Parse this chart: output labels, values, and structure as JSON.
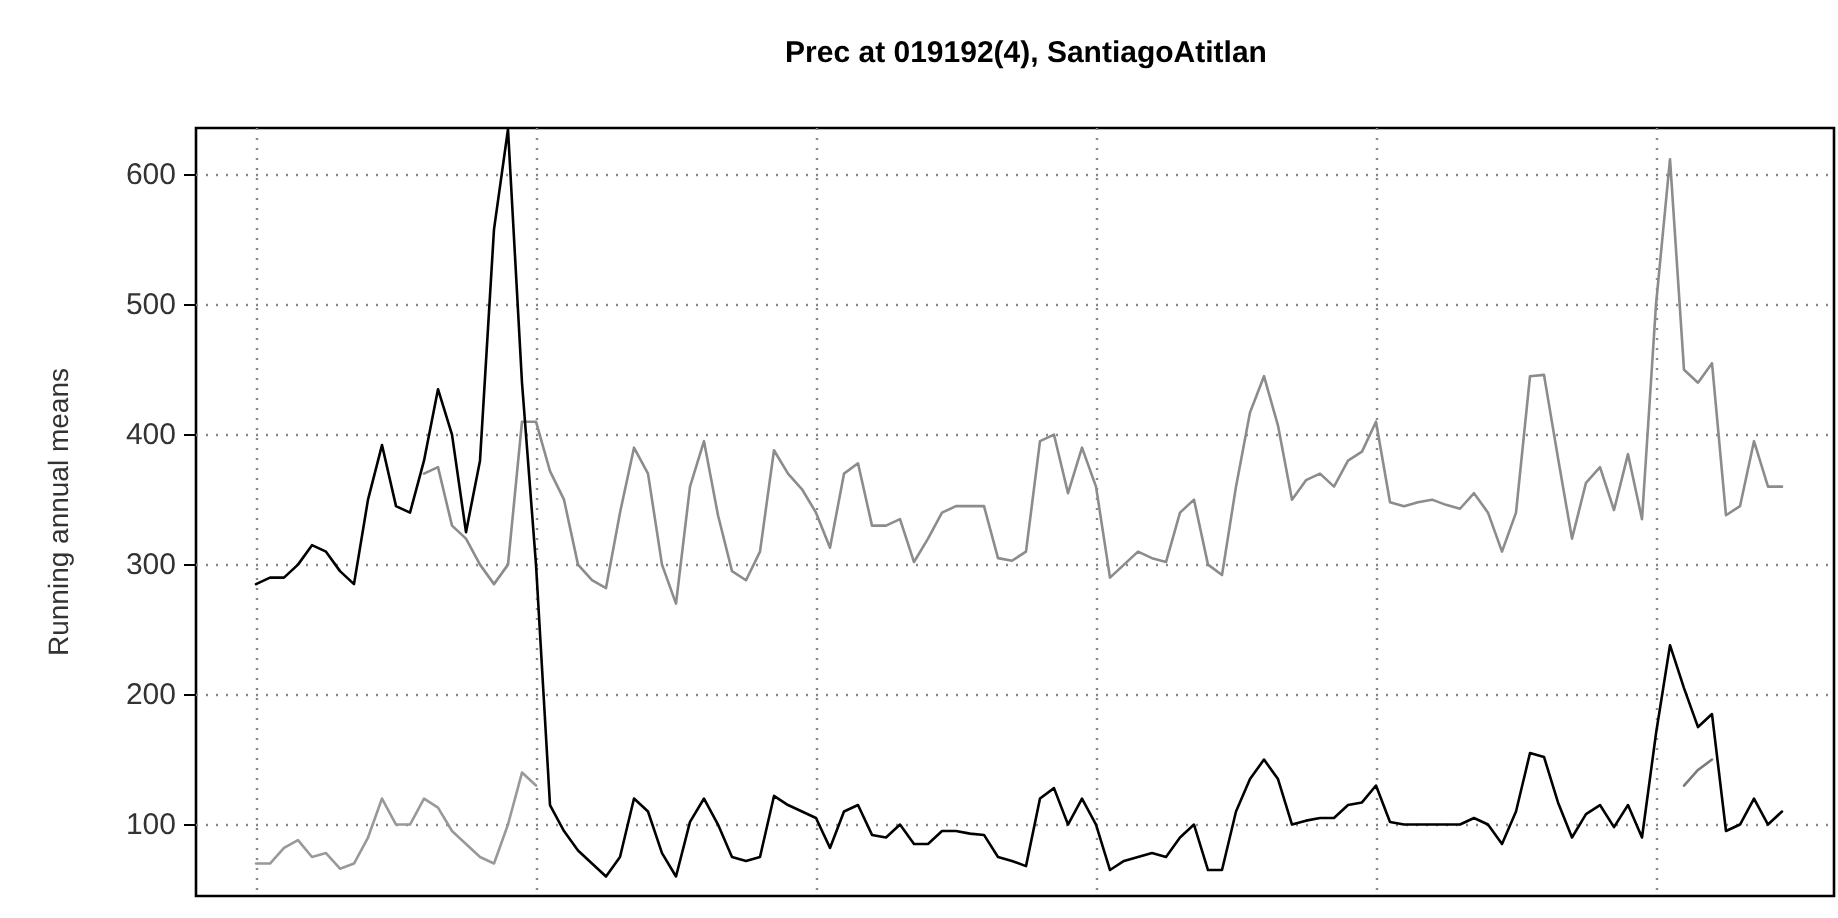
{
  "chart_data": {
    "type": "line",
    "title": "Prec at 019192(4), SantiagoAtitlan",
    "ylabel": "Running annual means",
    "categories": [
      null,
      null,
      null,
      null,
      null,
      null,
      null,
      null,
      null,
      null,
      null,
      null,
      null,
      null,
      null,
      null,
      null,
      null,
      null,
      null,
      null,
      null,
      null,
      null,
      null,
      null,
      null,
      null,
      null,
      null,
      null,
      null,
      null,
      null,
      null,
      null,
      null,
      null,
      null,
      null,
      null,
      null,
      null,
      null,
      null,
      null,
      null,
      null,
      null,
      null,
      null,
      null,
      null,
      null,
      null,
      null,
      null,
      null,
      null,
      null,
      null,
      null,
      null,
      null,
      null,
      null,
      null,
      null,
      null,
      null,
      null,
      null,
      null,
      null,
      null,
      null,
      null,
      null,
      null,
      null,
      null,
      null,
      null,
      null,
      null,
      null,
      null,
      null,
      null,
      null,
      null,
      null,
      null,
      null,
      null,
      null,
      null,
      null,
      null,
      null,
      null,
      null,
      null,
      null,
      null,
      null,
      null,
      null,
      null,
      null
    ],
    "ylim": [
      45,
      636
    ],
    "yticks": [
      100,
      200,
      300,
      400,
      500,
      600
    ],
    "grid": true,
    "tick_labels": "y",
    "line_style": "solid",
    "series": [
      {
        "color": "#999999",
        "values": [
          70,
          70,
          82,
          88,
          75,
          78,
          66,
          70,
          90,
          120,
          100,
          100,
          120,
          113,
          95,
          85,
          75,
          70,
          100,
          140,
          130,
          null,
          null,
          null,
          null,
          null,
          null,
          null,
          null,
          null,
          null,
          null,
          null,
          null,
          null,
          null,
          null,
          null,
          null,
          null,
          null,
          null,
          null,
          null,
          null,
          null,
          null,
          null,
          null,
          null,
          null,
          null,
          null,
          null,
          null,
          null,
          null,
          null,
          null,
          null,
          null,
          null,
          null,
          null,
          null,
          null,
          null,
          null,
          null,
          null,
          null,
          null,
          null,
          null,
          null,
          null,
          null,
          null,
          null,
          null,
          null,
          null,
          null,
          null,
          null,
          null,
          null,
          null,
          null,
          null,
          null,
          null,
          null,
          null,
          null,
          null,
          null,
          null,
          null,
          null,
          null,
          null,
          null,
          null,
          null,
          null,
          null,
          null,
          null,
          null
        ]
      },
      {
        "color": "#7a7a7a",
        "values": [
          null,
          null,
          null,
          null,
          null,
          null,
          null,
          null,
          null,
          null,
          null,
          null,
          null,
          null,
          null,
          null,
          null,
          null,
          null,
          null,
          null,
          null,
          null,
          null,
          null,
          null,
          null,
          null,
          null,
          null,
          null,
          null,
          null,
          null,
          null,
          null,
          null,
          null,
          null,
          null,
          null,
          null,
          null,
          null,
          null,
          null,
          null,
          null,
          null,
          null,
          null,
          null,
          null,
          null,
          null,
          null,
          null,
          null,
          null,
          null,
          null,
          null,
          null,
          null,
          null,
          null,
          null,
          null,
          null,
          null,
          null,
          null,
          null,
          null,
          null,
          null,
          null,
          null,
          null,
          null,
          null,
          null,
          null,
          null,
          null,
          null,
          null,
          null,
          null,
          null,
          null,
          null,
          null,
          null,
          null,
          null,
          null,
          null,
          null,
          null,
          null,
          null,
          130,
          142,
          150,
          null,
          null,
          null,
          null,
          null
        ]
      },
      {
        "color": "#8c8c8c",
        "values": [
          null,
          null,
          null,
          null,
          null,
          null,
          null,
          null,
          null,
          null,
          null,
          null,
          370,
          375,
          330,
          320,
          300,
          285,
          300,
          410,
          410,
          372,
          350,
          300,
          288,
          282,
          340,
          390,
          370,
          300,
          270,
          360,
          395,
          338,
          295,
          288,
          310,
          388,
          370,
          358,
          340,
          313,
          370,
          378,
          330,
          330,
          335,
          302,
          320,
          340,
          345,
          345,
          345,
          305,
          303,
          310,
          395,
          400,
          355,
          390,
          360,
          290,
          300,
          310,
          305,
          302,
          340,
          350,
          300,
          292,
          360,
          417,
          445,
          407,
          350,
          365,
          370,
          360,
          380,
          387,
          410,
          348,
          345,
          348,
          350,
          346,
          343,
          355,
          340,
          310,
          340,
          445,
          446,
          382,
          320,
          363,
          375,
          342,
          385,
          335,
          500,
          612,
          450,
          440,
          455,
          338,
          345,
          395,
          360,
          360
        ]
      },
      {
        "color": "#000000",
        "values": [
          285,
          290,
          290,
          300,
          315,
          310,
          295,
          285,
          350,
          392,
          345,
          340,
          380,
          435,
          400,
          325,
          380,
          558,
          635,
          440,
          300,
          115,
          95,
          80,
          70,
          60,
          75,
          120,
          110,
          78,
          60,
          102,
          120,
          100,
          75,
          72,
          75,
          122,
          115,
          110,
          105,
          82,
          110,
          115,
          92,
          90,
          100,
          85,
          85,
          95,
          95,
          93,
          92,
          75,
          72,
          68,
          120,
          128,
          100,
          120,
          100,
          65,
          72,
          75,
          78,
          75,
          90,
          100,
          65,
          65,
          110,
          135,
          150,
          135,
          100,
          103,
          105,
          105,
          115,
          117,
          130,
          102,
          100,
          100,
          100,
          100,
          100,
          105,
          100,
          85,
          110,
          155,
          152,
          117,
          90,
          108,
          115,
          98,
          115,
          90,
          170,
          238,
          205,
          175,
          185,
          95,
          100,
          120,
          100,
          110
        ]
      }
    ]
  }
}
